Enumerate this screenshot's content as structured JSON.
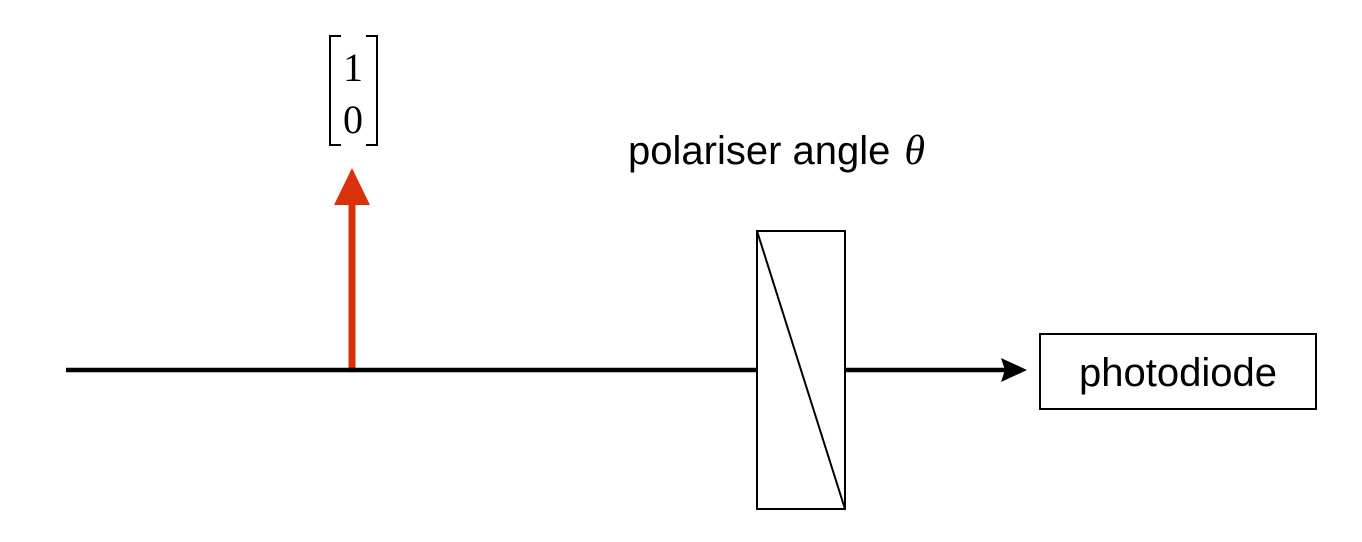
{
  "vector": {
    "top": "1",
    "bottom": "0"
  },
  "polariser": {
    "label": "polariser angle",
    "symbol": "θ"
  },
  "detector": {
    "label": "photodiode"
  },
  "colors": {
    "beam": "#000000",
    "polarisation_arrow": "#d9310b",
    "background": "#ffffff"
  }
}
